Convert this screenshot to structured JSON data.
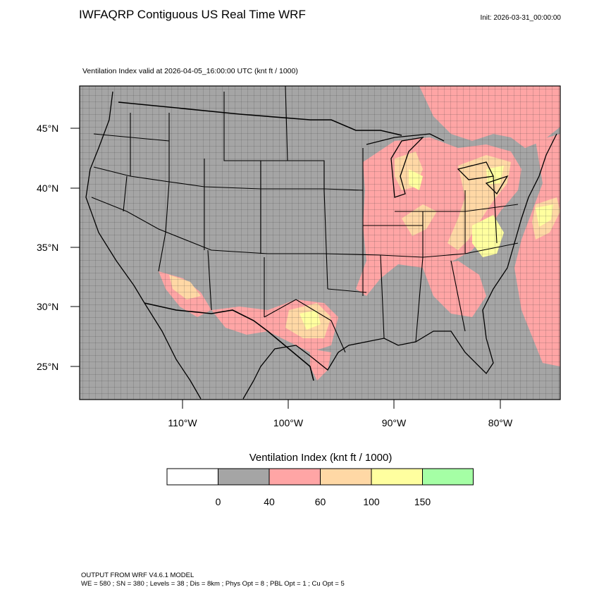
{
  "header": {
    "title": "IWFAQRP Contiguous US Real Time WRF",
    "init": "Init: 2026-03-31_00:00:00",
    "subtitle": "Ventilation Index valid at 2026-04-05_16:00:00 UTC   (knt ft / 1000)"
  },
  "map": {
    "lat_labels": [
      "45°N",
      "40°N",
      "35°N",
      "30°N",
      "25°N"
    ],
    "lon_labels": [
      "110°W",
      "100°W",
      "90°W",
      "80°W"
    ],
    "field_colors": {
      "background_bin": "#a5a5a5",
      "low_bin": "#ffa5a5",
      "mid_bin": "#ffd8a5",
      "high_bin": "#ffff9f"
    }
  },
  "legend": {
    "title": "Ventilation Index  (knt ft / 1000)",
    "bins": [
      {
        "color": "#ffffff"
      },
      {
        "color": "#a5a5a5"
      },
      {
        "color": "#ffa5a5"
      },
      {
        "color": "#ffd8a5"
      },
      {
        "color": "#ffff9f"
      },
      {
        "color": "#a5ffa5"
      }
    ],
    "ticks": [
      "0",
      "40",
      "60",
      "100",
      "150"
    ]
  },
  "footer": {
    "line1": "OUTPUT FROM WRF V4.6.1 MODEL",
    "line2": "WE = 580 ; SN = 380 ; Levels = 38 ; Dis = 8km ; Phys Opt = 8 ; PBL Opt = 1 ; Cu Opt = 5"
  }
}
